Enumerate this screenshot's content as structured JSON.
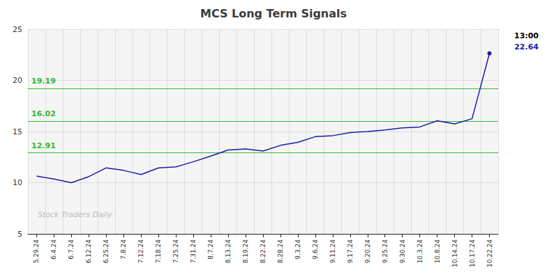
{
  "chart_data": {
    "type": "line",
    "title": "MCS Long Term Signals",
    "categories": [
      "5.29.24",
      "6.4.24",
      "6.7.24",
      "6.12.24",
      "6.25.24",
      "7.8.24",
      "7.12.24",
      "7.18.24",
      "7.25.24",
      "7.31.24",
      "8.7.24",
      "8.13.24",
      "8.19.24",
      "8.22.24",
      "8.28.24",
      "9.3.24",
      "9.6.24",
      "9.11.24",
      "9.17.24",
      "9.20.24",
      "9.25.24",
      "9.30.24",
      "10.3.24",
      "10.8.24",
      "10.14.24",
      "10.17.24",
      "10.22.24"
    ],
    "values": [
      10.65,
      10.35,
      10.0,
      10.6,
      11.45,
      11.2,
      10.8,
      11.45,
      11.55,
      12.05,
      12.6,
      13.2,
      13.3,
      13.1,
      13.65,
      13.95,
      14.5,
      14.6,
      14.9,
      15.0,
      15.15,
      15.35,
      15.45,
      16.05,
      15.75,
      16.25,
      22.64
    ],
    "color": "#1a1aaa",
    "ylim": [
      5,
      25
    ],
    "yticks": [
      5,
      10,
      15,
      20,
      25
    ],
    "grid": true,
    "reference_lines": [
      {
        "value": 19.19,
        "label": "19.19",
        "color": "#33bb33"
      },
      {
        "value": 16.02,
        "label": "16.02",
        "color": "#33bb33"
      },
      {
        "value": 12.91,
        "label": "12.91",
        "color": "#33bb33"
      }
    ],
    "annotations": [
      {
        "text": "13:00",
        "color": "#000000"
      },
      {
        "text": "22.64",
        "color": "#1a1aaa"
      }
    ],
    "watermark": {
      "text": "Stock Traders Daily",
      "color": "#bbbbbb"
    }
  }
}
